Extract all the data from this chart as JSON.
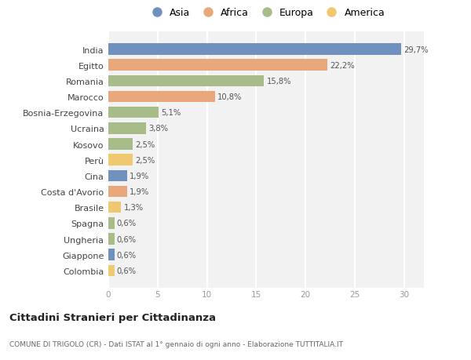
{
  "categories": [
    "India",
    "Egitto",
    "Romania",
    "Marocco",
    "Bosnia-Erzegovina",
    "Ucraina",
    "Kosovo",
    "Perù",
    "Cina",
    "Costa d'Avorio",
    "Brasile",
    "Spagna",
    "Ungheria",
    "Giappone",
    "Colombia"
  ],
  "values": [
    29.7,
    22.2,
    15.8,
    10.8,
    5.1,
    3.8,
    2.5,
    2.5,
    1.9,
    1.9,
    1.3,
    0.6,
    0.6,
    0.6,
    0.6
  ],
  "labels": [
    "29,7%",
    "22,2%",
    "15,8%",
    "10,8%",
    "5,1%",
    "3,8%",
    "2,5%",
    "2,5%",
    "1,9%",
    "1,9%",
    "1,3%",
    "0,6%",
    "0,6%",
    "0,6%",
    "0,6%"
  ],
  "continents": [
    "Asia",
    "Africa",
    "Europa",
    "Africa",
    "Europa",
    "Europa",
    "Europa",
    "America",
    "Asia",
    "Africa",
    "America",
    "Europa",
    "Europa",
    "Asia",
    "America"
  ],
  "continent_colors": {
    "Asia": "#7090be",
    "Africa": "#e8a87c",
    "Europa": "#a8bc8a",
    "America": "#f0c870"
  },
  "legend_order": [
    "Asia",
    "Africa",
    "Europa",
    "America"
  ],
  "xlim": [
    0,
    32
  ],
  "xticks": [
    0,
    5,
    10,
    15,
    20,
    25,
    30
  ],
  "bg_color": "#f2f2f2",
  "title": "Cittadini Stranieri per Cittadinanza",
  "subtitle": "COMUNE DI TRIGOLO (CR) - Dati ISTAT al 1° gennaio di ogni anno - Elaborazione TUTTITALIA.IT",
  "bar_height": 0.72
}
